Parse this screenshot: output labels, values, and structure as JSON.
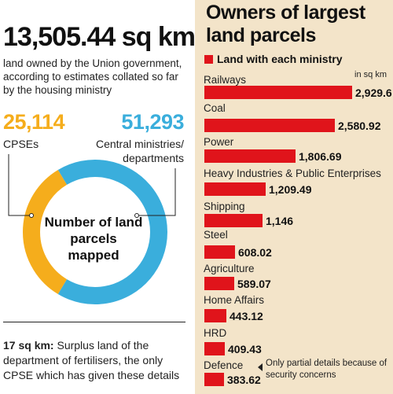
{
  "left": {
    "headline": "13,505.44 sq km",
    "subtext": "land owned by the Union government, according to estimates collated so far by the housing ministry",
    "cpse_count": "25,114",
    "cpse_label": "CPSEs",
    "central_count": "51,293",
    "central_label": "Central ministries/ departments",
    "donut_text": "Number of land parcels mapped",
    "note_bold": "17 sq km:",
    "note_text": " Surplus land of the department of fertilisers, the only CPSE which has given these details"
  },
  "right": {
    "title": "Owners of largest land parcels",
    "legend": "Land with each ministry",
    "unit": "in sq km",
    "annotation": "Only partial details because of security concerns"
  },
  "colors": {
    "cpse": "#f5ad1c",
    "central": "#3aaedc",
    "bar": "#e0141b",
    "panel": "#f3e4c9"
  },
  "chart_data": [
    {
      "type": "pie",
      "categories": [
        "CPSEs",
        "Central ministries/ departments"
      ],
      "values": [
        25114,
        51293
      ],
      "labels": [
        "25,114",
        "51,293"
      ],
      "center_text": "Number of land parcels mapped"
    },
    {
      "type": "bar",
      "orientation": "horizontal",
      "title": "Owners of largest land parcels",
      "legend": [
        "Land with each ministry"
      ],
      "unit": "in sq km",
      "categories": [
        "Railways",
        "Coal",
        "Power",
        "Heavy Industries & Public Enterprises",
        "Shipping",
        "Steel",
        "Agriculture",
        "Home Affairs",
        "HRD",
        "Defence"
      ],
      "values": [
        2929.6,
        2580.92,
        1806.69,
        1209.49,
        1146,
        608.02,
        589.07,
        443.12,
        409.43,
        383.62
      ],
      "labels": [
        "2,929.6",
        "2,580.92",
        "1,806.69",
        "1,209.49",
        "1,146",
        "608.02",
        "589.07",
        "443.12",
        "409.43",
        "383.62"
      ]
    }
  ]
}
